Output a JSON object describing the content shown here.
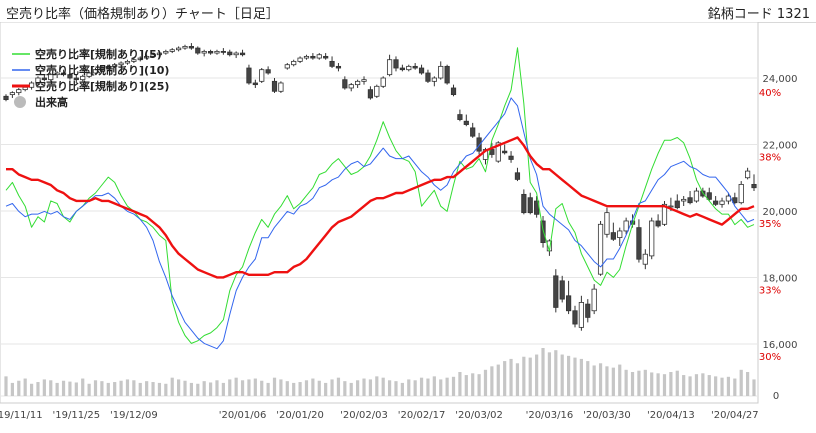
{
  "header": {
    "title": "空売り比率（価格規制あり）チャート［日足］",
    "code": "銘柄コード 1321"
  },
  "chart_data": {
    "type": "line",
    "legend": [
      {
        "name": "空売り比率[規制あり](5)",
        "color": "#33dd33"
      },
      {
        "name": "空売り比率[規制あり](10)",
        "color": "#3366ee"
      },
      {
        "name": "空売り比率[規制あり](25)",
        "color": "#ee1111"
      },
      {
        "name": "出来高",
        "color": "#bbbbbb"
      }
    ],
    "price_axis": {
      "ticks": [
        "24,000",
        "22,000",
        "20,000",
        "18,000",
        "16,000"
      ],
      "values": [
        24000,
        22000,
        20000,
        18000,
        16000
      ],
      "color": "#444444"
    },
    "ratio_axis": {
      "ticks": [
        "40%",
        "38%",
        "35%",
        "33%",
        "30%"
      ],
      "values": [
        40,
        38,
        35,
        33,
        30
      ],
      "color": "#dd0000"
    },
    "volume_axis": {
      "ticks": [
        "0"
      ]
    },
    "x_labels": [
      {
        "i": 2,
        "label": "'19/11/11"
      },
      {
        "i": 11,
        "label": "'19/11/25"
      },
      {
        "i": 20,
        "label": "'19/12/09"
      },
      {
        "i": 37,
        "label": "'20/01/06"
      },
      {
        "i": 46,
        "label": "'20/01/20"
      },
      {
        "i": 56,
        "label": "'20/02/03"
      },
      {
        "i": 65,
        "label": "'20/02/17"
      },
      {
        "i": 74,
        "label": "'20/03/02"
      },
      {
        "i": 85,
        "label": "'20/03/16"
      },
      {
        "i": 94,
        "label": "'20/03/30"
      },
      {
        "i": 104,
        "label": "'20/04/13"
      },
      {
        "i": 114,
        "label": "'20/04/27"
      }
    ],
    "candles": [
      [
        0,
        23450,
        23510,
        23300,
        23350
      ],
      [
        1,
        23500,
        23600,
        23400,
        23560
      ],
      [
        2,
        23560,
        23700,
        23480,
        23650
      ],
      [
        3,
        23650,
        23800,
        23600,
        23720
      ],
      [
        4,
        23720,
        23900,
        23650,
        23850
      ],
      [
        5,
        23850,
        24050,
        23800,
        24000
      ],
      [
        6,
        24000,
        24100,
        23900,
        23950
      ],
      [
        7,
        23950,
        24150,
        23900,
        24100
      ],
      [
        8,
        24100,
        24200,
        24000,
        24150
      ],
      [
        9,
        24150,
        24250,
        24050,
        24100
      ],
      [
        10,
        24100,
        24200,
        23950,
        24000
      ],
      [
        11,
        24000,
        24100,
        23850,
        23950
      ],
      [
        12,
        23950,
        24100,
        23900,
        24050
      ],
      [
        13,
        24050,
        24200,
        24000,
        24150
      ],
      [
        14,
        24150,
        24300,
        24100,
        24250
      ],
      [
        15,
        24250,
        24350,
        24200,
        24300
      ],
      [
        16,
        24300,
        24400,
        24250,
        24350
      ],
      [
        17,
        24350,
        24450,
        24300,
        24400
      ],
      [
        18,
        24400,
        24500,
        24350,
        24450
      ],
      [
        19,
        24450,
        24550,
        24400,
        24500
      ],
      [
        20,
        24500,
        24600,
        24450,
        24550
      ],
      [
        21,
        24550,
        24650,
        24500,
        24600
      ],
      [
        22,
        24600,
        24700,
        24550,
        24650
      ],
      [
        23,
        24650,
        24750,
        24600,
        24700
      ],
      [
        24,
        24700,
        24800,
        24650,
        24750
      ],
      [
        25,
        24750,
        24850,
        24700,
        24800
      ],
      [
        26,
        24800,
        24900,
        24750,
        24850
      ],
      [
        27,
        24850,
        24950,
        24800,
        24900
      ],
      [
        28,
        24900,
        25000,
        24850,
        24950
      ],
      [
        29,
        24950,
        25050,
        24850,
        24900
      ],
      [
        30,
        24900,
        24950,
        24700,
        24750
      ],
      [
        31,
        24750,
        24850,
        24650,
        24800
      ],
      [
        32,
        24800,
        24850,
        24700,
        24750
      ],
      [
        33,
        24750,
        24850,
        24700,
        24800
      ],
      [
        34,
        24800,
        24900,
        24700,
        24780
      ],
      [
        35,
        24780,
        24850,
        24650,
        24700
      ],
      [
        36,
        24700,
        24800,
        24600,
        24750
      ],
      [
        37,
        24750,
        24850,
        24650,
        24700
      ],
      [
        38,
        24300,
        24400,
        23800,
        23850
      ],
      [
        39,
        23850,
        23950,
        23700,
        23800
      ],
      [
        40,
        23900,
        24300,
        23850,
        24250
      ],
      [
        41,
        24250,
        24350,
        24100,
        24150
      ],
      [
        42,
        23900,
        24000,
        23550,
        23600
      ],
      [
        43,
        23600,
        23900,
        23550,
        23850
      ],
      [
        44,
        24300,
        24450,
        24250,
        24400
      ],
      [
        45,
        24400,
        24550,
        24350,
        24500
      ],
      [
        46,
        24500,
        24650,
        24450,
        24600
      ],
      [
        47,
        24600,
        24700,
        24550,
        24650
      ],
      [
        48,
        24650,
        24750,
        24550,
        24600
      ],
      [
        49,
        24600,
        24750,
        24550,
        24700
      ],
      [
        50,
        24650,
        24750,
        24550,
        24600
      ],
      [
        51,
        24500,
        24650,
        24300,
        24350
      ],
      [
        52,
        24350,
        24450,
        24200,
        24300
      ],
      [
        53,
        23950,
        24050,
        23650,
        23700
      ],
      [
        54,
        23700,
        23850,
        23600,
        23800
      ],
      [
        55,
        23800,
        23950,
        23700,
        23900
      ],
      [
        56,
        23900,
        24050,
        23800,
        23950
      ],
      [
        57,
        23650,
        23750,
        23350,
        23400
      ],
      [
        58,
        23450,
        23800,
        23400,
        23750
      ],
      [
        59,
        23750,
        24050,
        23700,
        24000
      ],
      [
        60,
        24100,
        24700,
        24050,
        24550
      ],
      [
        61,
        24550,
        24650,
        24200,
        24300
      ],
      [
        62,
        24300,
        24400,
        24200,
        24250
      ],
      [
        63,
        24250,
        24400,
        24200,
        24350
      ],
      [
        64,
        24350,
        24450,
        24250,
        24300
      ],
      [
        65,
        24300,
        24400,
        24100,
        24150
      ],
      [
        66,
        24150,
        24250,
        23850,
        23900
      ],
      [
        67,
        23900,
        24050,
        23750,
        24000
      ],
      [
        68,
        24000,
        24500,
        23950,
        24350
      ],
      [
        69,
        24350,
        24400,
        23800,
        23850
      ],
      [
        70,
        23700,
        23800,
        23450,
        23500
      ],
      [
        71,
        22900,
        23050,
        22700,
        22750
      ],
      [
        72,
        22700,
        22900,
        22550,
        22600
      ],
      [
        73,
        22500,
        22650,
        22200,
        22250
      ],
      [
        74,
        22200,
        22350,
        21700,
        21800
      ],
      [
        75,
        21550,
        21900,
        21400,
        21850
      ],
      [
        76,
        21850,
        22050,
        21600,
        21700
      ],
      [
        77,
        21500,
        22100,
        21450,
        22050
      ],
      [
        78,
        21800,
        22000,
        21700,
        21750
      ],
      [
        79,
        21650,
        21800,
        21450,
        21550
      ],
      [
        80,
        21150,
        21300,
        20900,
        20950
      ],
      [
        81,
        20500,
        20650,
        19900,
        19950
      ],
      [
        82,
        20400,
        20550,
        19900,
        19950
      ],
      [
        83,
        20300,
        20450,
        19800,
        19900
      ],
      [
        84,
        19700,
        19850,
        18900,
        19050
      ],
      [
        85,
        18800,
        19150,
        18650,
        19100
      ],
      [
        86,
        18050,
        18250,
        16950,
        17100
      ],
      [
        87,
        17900,
        18050,
        17250,
        17350
      ],
      [
        88,
        17450,
        17900,
        16900,
        17000
      ],
      [
        89,
        17000,
        17150,
        16500,
        16600
      ],
      [
        90,
        16500,
        17450,
        16400,
        17250
      ],
      [
        91,
        17200,
        17350,
        16650,
        16800
      ],
      [
        92,
        17000,
        17800,
        16900,
        17650
      ],
      [
        93,
        18100,
        19700,
        18050,
        19600
      ],
      [
        94,
        19300,
        20100,
        19200,
        19950
      ],
      [
        95,
        19350,
        19650,
        19100,
        19150
      ],
      [
        96,
        19200,
        19500,
        18950,
        19400
      ],
      [
        97,
        19400,
        19800,
        19300,
        19700
      ],
      [
        98,
        19700,
        19900,
        19500,
        19600
      ],
      [
        99,
        19500,
        19750,
        18450,
        18550
      ],
      [
        100,
        18400,
        18850,
        18250,
        18700
      ],
      [
        101,
        18650,
        19800,
        18550,
        19700
      ],
      [
        102,
        19700,
        19900,
        19500,
        19550
      ],
      [
        103,
        19600,
        20300,
        19550,
        20200
      ],
      [
        104,
        20150,
        20400,
        20000,
        20150
      ],
      [
        105,
        20300,
        20500,
        20050,
        20100
      ],
      [
        106,
        20300,
        20450,
        20150,
        20350
      ],
      [
        107,
        20400,
        20600,
        20200,
        20250
      ],
      [
        108,
        20300,
        20700,
        20250,
        20600
      ],
      [
        109,
        20600,
        20700,
        20400,
        20450
      ],
      [
        110,
        20550,
        20700,
        20300,
        20350
      ],
      [
        111,
        20300,
        20450,
        20150,
        20200
      ],
      [
        112,
        20200,
        20400,
        20100,
        20300
      ],
      [
        113,
        20300,
        20550,
        20200,
        20450
      ],
      [
        114,
        20400,
        20550,
        20200,
        20250
      ],
      [
        115,
        20250,
        20900,
        20200,
        20800
      ],
      [
        116,
        21000,
        21300,
        20950,
        21200
      ],
      [
        117,
        20800,
        21100,
        20600,
        20700
      ]
    ],
    "ma5": [
      36.2,
      36.5,
      36.0,
      35.6,
      34.8,
      35.2,
      35.0,
      35.8,
      35.7,
      35.2,
      35.0,
      35.4,
      35.6,
      35.9,
      36.1,
      36.4,
      36.7,
      36.5,
      36.0,
      35.6,
      35.4,
      35.1,
      35.0,
      34.8,
      34.5,
      34.3,
      32.0,
      31.2,
      30.7,
      30.4,
      30.5,
      30.7,
      30.8,
      31.0,
      31.3,
      32.4,
      33.0,
      33.3,
      34.0,
      34.6,
      35.1,
      34.8,
      35.3,
      35.6,
      36.0,
      35.5,
      35.7,
      36.0,
      36.3,
      36.8,
      36.9,
      37.2,
      37.4,
      37.1,
      36.8,
      36.9,
      37.1,
      37.5,
      38.1,
      38.8,
      38.2,
      37.7,
      37.4,
      37.3,
      36.9,
      35.6,
      35.9,
      36.2,
      35.6,
      35.4,
      36.4,
      37.3,
      37.0,
      37.1,
      37.4,
      36.9,
      38.1,
      38.7,
      39.4,
      40.0,
      41.6,
      39.5,
      36.5,
      36.1,
      34.7,
      33.9,
      35.5,
      35.7,
      35.0,
      34.6,
      33.8,
      33.3,
      32.8,
      32.6,
      33.1,
      32.9,
      33.2,
      34.1,
      34.9,
      35.6,
      36.3,
      37.0,
      37.6,
      38.1,
      38.1,
      38.2,
      38.0,
      37.4,
      36.6,
      36.1,
      35.8,
      35.5,
      35.3,
      35.3,
      34.9,
      35.1,
      34.8,
      34.9
    ],
    "ma10": [
      35.6,
      35.7,
      35.4,
      35.2,
      35.3,
      35.3,
      35.4,
      35.3,
      35.4,
      35.2,
      35.1,
      35.4,
      35.6,
      35.8,
      36.0,
      36.0,
      36.1,
      35.9,
      35.6,
      35.4,
      35.3,
      35.1,
      34.8,
      34.3,
      33.5,
      32.9,
      32.2,
      31.7,
      31.2,
      30.9,
      30.6,
      30.4,
      30.3,
      30.2,
      30.5,
      31.5,
      32.4,
      32.9,
      33.3,
      33.6,
      34.4,
      34.4,
      34.8,
      35.1,
      35.4,
      35.3,
      35.6,
      35.7,
      35.9,
      36.3,
      36.4,
      36.6,
      36.7,
      37.0,
      37.2,
      37.3,
      37.1,
      37.2,
      37.5,
      37.8,
      37.5,
      37.4,
      37.4,
      37.5,
      37.2,
      36.9,
      36.7,
      36.4,
      36.2,
      36.4,
      36.9,
      37.2,
      37.5,
      37.6,
      37.9,
      38.2,
      38.5,
      38.8,
      39.1,
      39.7,
      39.4,
      38.4,
      37.4,
      36.8,
      35.6,
      35.3,
      35.1,
      34.9,
      34.7,
      34.3,
      34.1,
      33.8,
      33.5,
      33.3,
      33.6,
      33.6,
      34.0,
      34.5,
      35.1,
      35.7,
      35.8,
      36.2,
      36.6,
      36.8,
      37.1,
      37.2,
      37.3,
      37.1,
      37.0,
      36.8,
      36.7,
      36.7,
      36.4,
      36.1,
      35.6,
      35.3,
      35.0,
      35.1
    ],
    "ma25": [
      37.0,
      37.0,
      36.8,
      36.7,
      36.6,
      36.6,
      36.5,
      36.4,
      36.2,
      36.1,
      35.9,
      35.8,
      35.8,
      35.8,
      35.9,
      35.8,
      35.8,
      35.7,
      35.6,
      35.5,
      35.4,
      35.3,
      35.2,
      35.0,
      34.8,
      34.5,
      34.1,
      33.8,
      33.6,
      33.4,
      33.2,
      33.1,
      33.0,
      32.9,
      32.9,
      33.0,
      33.1,
      33.1,
      33.0,
      33.0,
      33.0,
      33.0,
      33.1,
      33.1,
      33.1,
      33.3,
      33.4,
      33.6,
      33.9,
      34.2,
      34.5,
      34.8,
      35.0,
      35.1,
      35.2,
      35.4,
      35.6,
      35.8,
      35.9,
      35.9,
      36.0,
      36.1,
      36.1,
      36.2,
      36.3,
      36.4,
      36.5,
      36.6,
      36.6,
      36.7,
      36.7,
      36.9,
      37.1,
      37.3,
      37.5,
      37.7,
      37.8,
      37.9,
      38.0,
      38.1,
      38.2,
      37.9,
      37.5,
      37.2,
      37.0,
      37.0,
      36.8,
      36.6,
      36.4,
      36.2,
      36.0,
      35.9,
      35.8,
      35.7,
      35.6,
      35.6,
      35.6,
      35.6,
      35.6,
      35.6,
      35.6,
      35.6,
      35.6,
      35.6,
      35.5,
      35.4,
      35.3,
      35.2,
      35.3,
      35.2,
      35.1,
      35.0,
      34.9,
      35.1,
      35.3,
      35.5,
      35.5,
      35.6
    ],
    "volume": [
      45,
      30,
      35,
      40,
      28,
      32,
      38,
      36,
      30,
      35,
      33,
      31,
      40,
      28,
      36,
      34,
      30,
      32,
      35,
      38,
      36,
      30,
      34,
      32,
      30,
      28,
      42,
      38,
      35,
      30,
      28,
      34,
      31,
      36,
      30,
      38,
      42,
      36,
      38,
      40,
      35,
      30,
      42,
      38,
      34,
      30,
      32,
      36,
      40,
      35,
      30,
      38,
      42,
      34,
      30,
      36,
      40,
      38,
      45,
      42,
      36,
      34,
      30,
      38,
      36,
      42,
      40,
      45,
      38,
      42,
      44,
      55,
      48,
      52,
      50,
      60,
      68,
      72,
      80,
      85,
      75,
      90,
      88,
      95,
      110,
      100,
      105,
      95,
      92,
      88,
      85,
      80,
      70,
      75,
      68,
      65,
      72,
      60,
      55,
      58,
      60,
      54,
      52,
      50,
      55,
      58,
      48,
      45,
      50,
      52,
      48,
      45,
      42,
      44,
      40,
      60,
      55,
      38
    ],
    "ratio_ref": [
      {
        "v": 38,
        "color": "#dd0000"
      }
    ]
  }
}
